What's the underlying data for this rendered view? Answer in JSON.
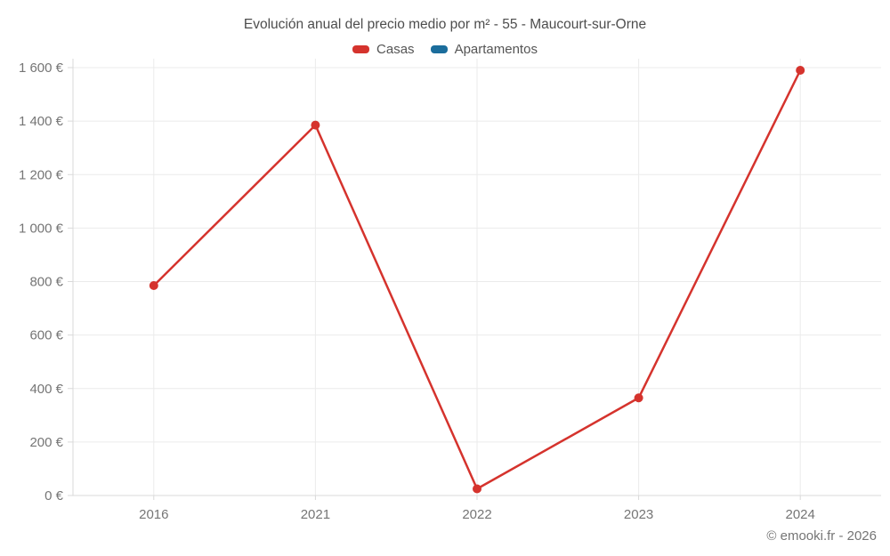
{
  "title": "Evolución anual del precio medio por m² - 55 - Maucourt-sur-Orne",
  "footer": "© emooki.fr - 2026",
  "colors": {
    "grid": "#ebebeb",
    "axis": "#d9d9d9",
    "tick_label": "#757575",
    "title_text": "#4d4d4d",
    "legend_text": "#555555",
    "casas_red": "#d5332d",
    "apartamentos_blue": "#1b6d9c"
  },
  "chart_data": {
    "type": "line",
    "title": "Evolución anual del precio medio por m² - 55 - Maucourt-sur-Orne",
    "categories": [
      "2016",
      "2021",
      "2022",
      "2023",
      "2024"
    ],
    "series": [
      {
        "name": "Casas",
        "color": "#d5332d",
        "values": [
          785,
          1385,
          25,
          365,
          1590
        ]
      },
      {
        "name": "Apartamentos",
        "color": "#1b6d9c",
        "values": []
      }
    ],
    "xlabel": "",
    "ylabel": "",
    "ylim": [
      0,
      1600
    ],
    "ytick_step": 200,
    "ytick_labels": [
      "0 €",
      "200 €",
      "400 €",
      "600 €",
      "800 €",
      "1 000 €",
      "1 200 €",
      "1 400 €",
      "1 600 €"
    ],
    "y_suffix": " €",
    "grid": true,
    "legend_position": "top"
  }
}
